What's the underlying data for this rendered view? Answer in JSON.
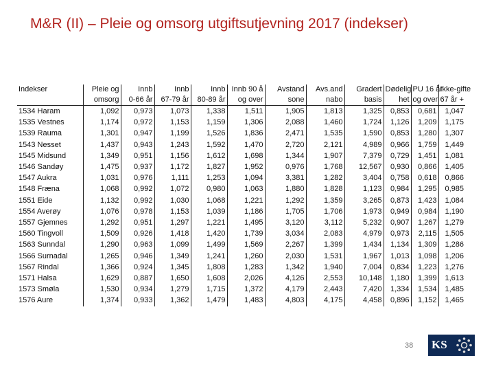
{
  "title": "M&R (II) – Pleie og omsorg utgiftsutjevning 2017 (indekser)",
  "table": {
    "header_row1": [
      "Indekser",
      "Pleie og",
      "Innb",
      "Innb",
      "Innb",
      "Innb 90 å",
      "Avstand",
      "Avs.and",
      "Gradert",
      "Dødelig",
      "PU 16 år",
      "Ikke-gifte"
    ],
    "header_row2": [
      "",
      "omsorg",
      "0-66 år",
      "67-79 år",
      "80-89 år",
      "og over",
      "sone",
      "nabo",
      "basis",
      "het",
      "og over",
      "67 år +"
    ],
    "rows": [
      [
        "1534 Haram",
        "1,092",
        "0,973",
        "1,073",
        "1,338",
        "1,511",
        "1,905",
        "1,813",
        "1,325",
        "0,853",
        "0,681",
        "1,047"
      ],
      [
        "1535 Vestnes",
        "1,174",
        "0,972",
        "1,153",
        "1,159",
        "1,306",
        "2,088",
        "1,460",
        "1,724",
        "1,126",
        "1,209",
        "1,175"
      ],
      [
        "1539 Rauma",
        "1,301",
        "0,947",
        "1,199",
        "1,526",
        "1,836",
        "2,471",
        "1,535",
        "1,590",
        "0,853",
        "1,280",
        "1,307"
      ],
      [
        "1543 Nesset",
        "1,437",
        "0,943",
        "1,243",
        "1,592",
        "1,470",
        "2,720",
        "2,121",
        "4,989",
        "0,966",
        "1,759",
        "1,449"
      ],
      [
        "1545 Midsund",
        "1,349",
        "0,951",
        "1,156",
        "1,612",
        "1,698",
        "1,344",
        "1,907",
        "7,379",
        "0,729",
        "1,451",
        "1,081"
      ],
      [
        "1546 Sandøy",
        "1,475",
        "0,937",
        "1,172",
        "1,827",
        "1,952",
        "0,976",
        "1,768",
        "12,567",
        "0,930",
        "0,866",
        "1,405"
      ],
      [
        "1547 Aukra",
        "1,031",
        "0,976",
        "1,111",
        "1,253",
        "1,094",
        "3,381",
        "1,282",
        "3,404",
        "0,758",
        "0,618",
        "0,866"
      ],
      [
        "1548 Fræna",
        "1,068",
        "0,992",
        "1,072",
        "0,980",
        "1,063",
        "1,880",
        "1,828",
        "1,123",
        "0,984",
        "1,295",
        "0,985"
      ],
      [
        "1551 Eide",
        "1,132",
        "0,992",
        "1,030",
        "1,068",
        "1,221",
        "1,292",
        "1,359",
        "3,265",
        "0,873",
        "1,423",
        "1,084"
      ],
      [
        "1554 Averøy",
        "1,076",
        "0,978",
        "1,153",
        "1,039",
        "1,186",
        "1,705",
        "1,706",
        "1,973",
        "0,949",
        "0,984",
        "1,190"
      ],
      [
        "1557 Gjemnes",
        "1,292",
        "0,951",
        "1,297",
        "1,221",
        "1,495",
        "3,120",
        "3,112",
        "5,232",
        "0,907",
        "1,267",
        "1,279"
      ],
      [
        "1560 Tingvoll",
        "1,509",
        "0,926",
        "1,418",
        "1,420",
        "1,739",
        "3,034",
        "2,083",
        "4,979",
        "0,973",
        "2,115",
        "1,505"
      ],
      [
        "1563 Sunndal",
        "1,290",
        "0,963",
        "1,099",
        "1,499",
        "1,569",
        "2,267",
        "1,399",
        "1,434",
        "1,134",
        "1,309",
        "1,286"
      ],
      [
        "1566 Surnadal",
        "1,265",
        "0,946",
        "1,349",
        "1,241",
        "1,260",
        "2,030",
        "1,531",
        "1,967",
        "1,013",
        "1,098",
        "1,206"
      ],
      [
        "1567 Rindal",
        "1,366",
        "0,924",
        "1,345",
        "1,808",
        "1,283",
        "1,342",
        "1,940",
        "7,004",
        "0,834",
        "1,223",
        "1,276"
      ],
      [
        "1571 Halsa",
        "1,629",
        "0,887",
        "1,650",
        "1,608",
        "2,026",
        "4,126",
        "2,553",
        "10,148",
        "1,180",
        "1,399",
        "1,613"
      ],
      [
        "1573 Smøla",
        "1,530",
        "0,934",
        "1,279",
        "1,715",
        "1,372",
        "4,179",
        "2,443",
        "7,420",
        "1,334",
        "1,534",
        "1,485"
      ],
      [
        "1576 Aure",
        "1,374",
        "0,933",
        "1,362",
        "1,479",
        "1,483",
        "4,803",
        "4,175",
        "4,458",
        "0,896",
        "1,152",
        "1,465"
      ]
    ]
  },
  "footer": {
    "page_number": "38",
    "logo_text": "KS"
  },
  "colors": {
    "title": "#b2231f",
    "logo_bg": "#0f2a55",
    "page_number": "#7a7a7a"
  }
}
